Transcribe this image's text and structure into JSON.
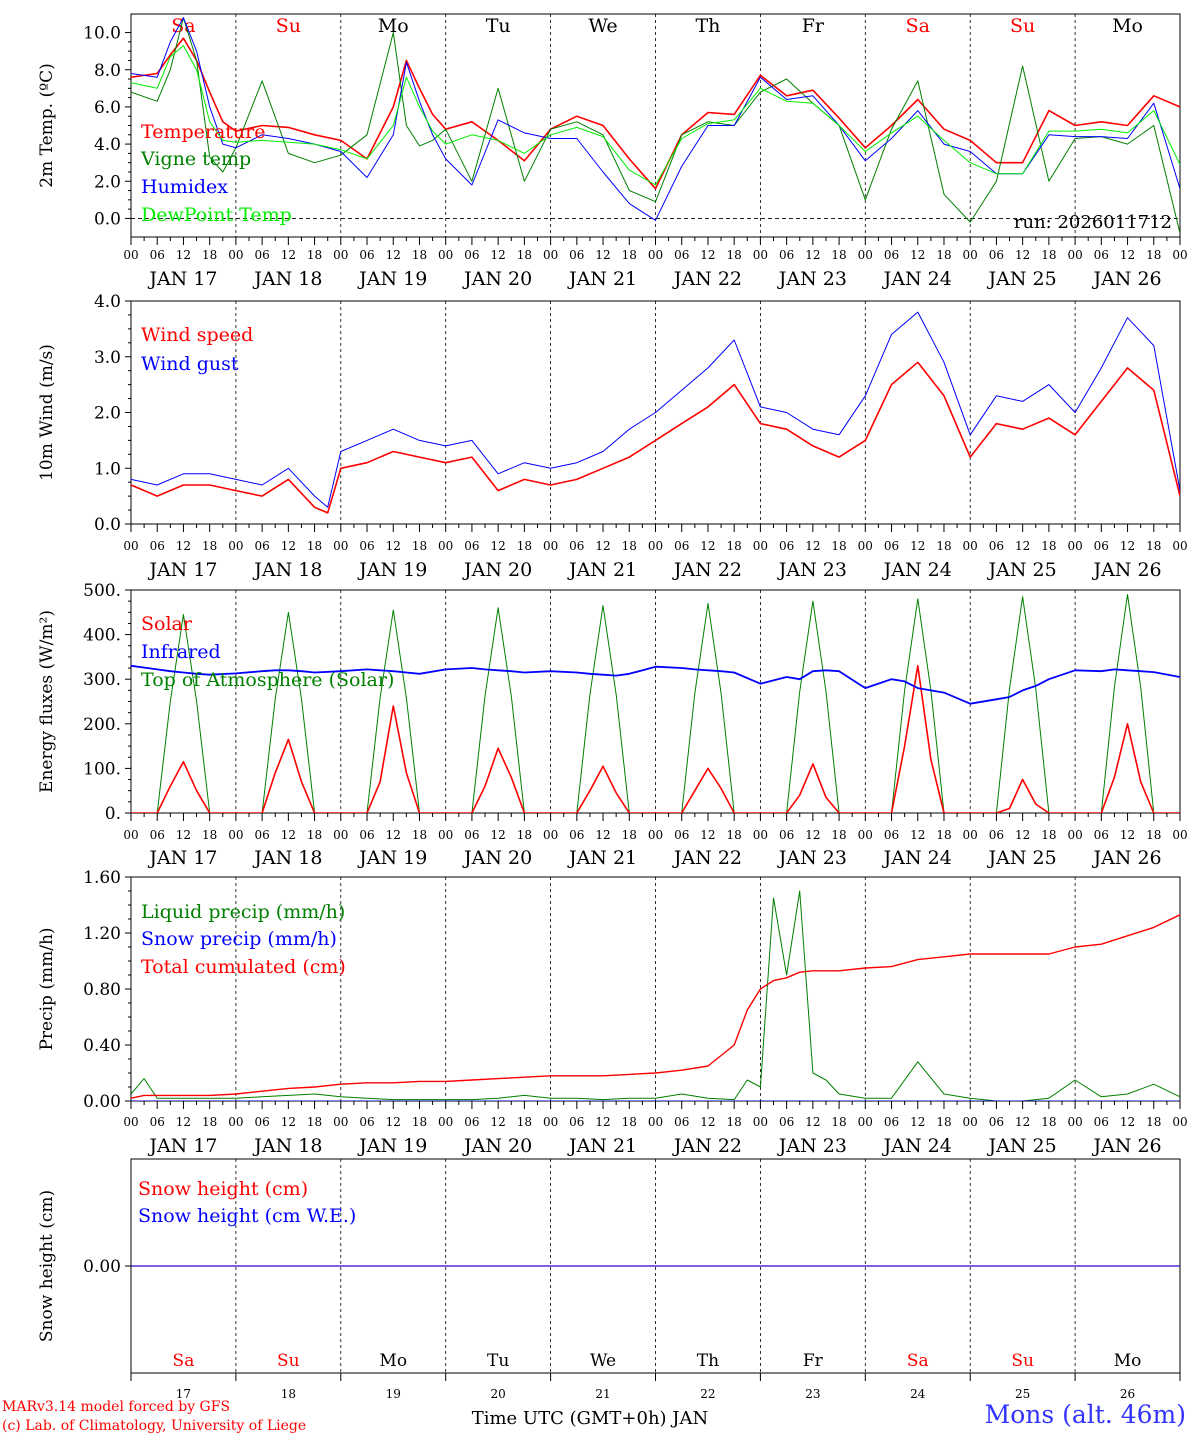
{
  "model_credit": "MARv3.14 model forced by GFS",
  "lab_credit": "(c) Lab. of Climatology, University of Liege",
  "station_label": "Mons (alt. 46m)",
  "x_axis_title": "Time UTC (GMT+0h) JAN",
  "run_label": "run: 2026011712",
  "colors": {
    "red": "#ff0000",
    "green": "#008000",
    "blue": "#0000ff",
    "lime": "#00ee00",
    "grid": "#000000"
  },
  "time_axis": {
    "days": 10,
    "hour_ticks": [
      "00",
      "06",
      "12",
      "18"
    ],
    "final_tick": "00",
    "date_labels": [
      "JAN 17",
      "JAN 18",
      "JAN 19",
      "JAN 20",
      "JAN 21",
      "JAN 22",
      "JAN 23",
      "JAN 24",
      "JAN 25",
      "JAN 26"
    ],
    "weekday_labels": [
      "Sa",
      "Su",
      "Mo",
      "Tu",
      "We",
      "Th",
      "Fr",
      "Sa",
      "Su",
      "Mo"
    ],
    "weekend_flags": [
      true,
      true,
      false,
      false,
      false,
      false,
      false,
      true,
      true,
      false
    ],
    "day_numbers": [
      "17",
      "18",
      "19",
      "20",
      "21",
      "22",
      "23",
      "24",
      "25",
      "26"
    ]
  },
  "chart_data": [
    {
      "id": "temperature",
      "type": "line",
      "ylabel": "2m Temp. (ºC)",
      "ylim": [
        -1.0,
        11.0
      ],
      "yticks": [
        0.0,
        2.0,
        4.0,
        6.0,
        8.0,
        10.0
      ],
      "ytick_labels": [
        "0.0",
        "2.0",
        "4.0",
        "6.0",
        "8.0",
        "10.0"
      ],
      "zero_line": true,
      "x_hours": [
        0,
        6,
        9,
        12,
        15,
        18,
        21,
        24,
        30,
        36,
        42,
        48,
        54,
        60,
        63,
        66,
        69,
        72,
        78,
        84,
        90,
        96,
        102,
        108,
        114,
        120,
        126,
        132,
        138,
        144,
        150,
        156,
        162,
        168,
        174,
        180,
        186,
        192,
        198,
        204,
        210,
        216,
        222,
        228,
        234,
        240
      ],
      "series": [
        {
          "name": "Temperature",
          "color": "#ff0000",
          "width": 1.6,
          "values": [
            7.6,
            7.8,
            8.8,
            9.7,
            8.5,
            6.8,
            5.2,
            4.7,
            5.0,
            4.9,
            4.5,
            4.2,
            3.2,
            6.0,
            8.5,
            7.0,
            5.6,
            4.8,
            5.2,
            4.2,
            3.1,
            4.8,
            5.5,
            5.0,
            3.2,
            1.6,
            4.5,
            5.7,
            5.6,
            7.7,
            6.6,
            6.9,
            5.4,
            3.8,
            5.0,
            6.4,
            4.8,
            4.2,
            3.0,
            3.0,
            5.8,
            5.0,
            5.2,
            5.0,
            6.6,
            6.0
          ]
        },
        {
          "name": "Vigne temp",
          "color": "#008000",
          "width": 1.0,
          "values": [
            6.8,
            6.3,
            8.0,
            10.8,
            8.5,
            3.3,
            2.5,
            3.8,
            7.4,
            3.5,
            3.0,
            3.4,
            4.5,
            10.0,
            5.0,
            3.9,
            4.2,
            4.8,
            2.0,
            7.0,
            2.0,
            4.8,
            5.2,
            4.5,
            1.5,
            0.9,
            4.5,
            5.2,
            5.0,
            6.8,
            7.5,
            6.2,
            5.0,
            1.0,
            4.8,
            7.4,
            1.3,
            -0.2,
            2.0,
            8.2,
            2.0,
            4.3,
            4.4,
            4.0,
            5.0,
            -0.8
          ]
        },
        {
          "name": "Humidex",
          "color": "#0000ff",
          "width": 1.0,
          "values": [
            7.8,
            7.6,
            9.5,
            10.8,
            9.0,
            6.0,
            4.0,
            3.8,
            4.5,
            4.3,
            4.0,
            3.6,
            2.2,
            4.5,
            8.4,
            6.3,
            4.5,
            3.2,
            1.8,
            5.3,
            4.6,
            4.3,
            4.3,
            2.5,
            0.8,
            -0.1,
            2.8,
            5.0,
            5.0,
            7.6,
            6.4,
            6.6,
            5.0,
            3.1,
            4.3,
            5.8,
            4.0,
            3.6,
            2.4,
            2.4,
            4.5,
            4.4,
            4.4,
            4.3,
            6.2,
            1.6
          ]
        },
        {
          "name": "DewPoint Temp",
          "color": "#00ee00",
          "width": 1.0,
          "values": [
            7.3,
            7.0,
            8.7,
            9.3,
            8.0,
            5.2,
            4.2,
            4.1,
            4.2,
            4.1,
            4.0,
            3.7,
            3.2,
            5.0,
            7.6,
            6.0,
            4.7,
            4.0,
            4.5,
            4.2,
            3.5,
            4.5,
            4.9,
            4.4,
            2.6,
            1.8,
            4.3,
            5.1,
            5.3,
            7.0,
            6.3,
            6.2,
            5.0,
            3.6,
            4.6,
            5.5,
            4.2,
            3.0,
            2.4,
            2.4,
            4.7,
            4.7,
            4.8,
            4.6,
            5.8,
            2.9
          ]
        }
      ]
    },
    {
      "id": "wind",
      "type": "line",
      "ylabel": "10m Wind (m/s)",
      "ylim": [
        0.0,
        4.0
      ],
      "yticks": [
        0.0,
        1.0,
        2.0,
        3.0,
        4.0
      ],
      "ytick_labels": [
        "0.0",
        "1.0",
        "2.0",
        "3.0",
        "4.0"
      ],
      "zero_line": false,
      "x_hours": [
        0,
        6,
        12,
        18,
        24,
        30,
        36,
        42,
        45,
        48,
        54,
        60,
        66,
        72,
        78,
        84,
        90,
        96,
        102,
        108,
        114,
        120,
        126,
        132,
        138,
        144,
        150,
        156,
        162,
        168,
        174,
        180,
        186,
        192,
        198,
        204,
        210,
        216,
        222,
        228,
        234,
        240
      ],
      "series": [
        {
          "name": "Wind speed",
          "color": "#ff0000",
          "width": 1.6,
          "values": [
            0.7,
            0.5,
            0.7,
            0.7,
            0.6,
            0.5,
            0.8,
            0.3,
            0.2,
            1.0,
            1.1,
            1.3,
            1.2,
            1.1,
            1.2,
            0.6,
            0.8,
            0.7,
            0.8,
            1.0,
            1.2,
            1.5,
            1.8,
            2.1,
            2.5,
            1.8,
            1.7,
            1.4,
            1.2,
            1.5,
            2.5,
            2.9,
            2.3,
            1.2,
            1.8,
            1.7,
            1.9,
            1.6,
            2.2,
            2.8,
            2.4,
            0.5
          ]
        },
        {
          "name": "Wind gust",
          "color": "#0000ff",
          "width": 1.0,
          "values": [
            0.8,
            0.7,
            0.9,
            0.9,
            0.8,
            0.7,
            1.0,
            0.5,
            0.3,
            1.3,
            1.5,
            1.7,
            1.5,
            1.4,
            1.5,
            0.9,
            1.1,
            1.0,
            1.1,
            1.3,
            1.7,
            2.0,
            2.4,
            2.8,
            3.3,
            2.1,
            2.0,
            1.7,
            1.6,
            2.3,
            3.4,
            3.8,
            2.9,
            1.6,
            2.3,
            2.2,
            2.5,
            2.0,
            2.8,
            3.7,
            3.2,
            0.6
          ]
        }
      ]
    },
    {
      "id": "energy",
      "type": "line",
      "ylabel": "Energy fluxes (W/m²)",
      "ylim": [
        0.0,
        500.0
      ],
      "yticks": [
        0.0,
        100.0,
        200.0,
        300.0,
        400.0,
        500.0
      ],
      "ytick_labels": [
        "0.",
        "100.",
        "200.",
        "300.",
        "400.",
        "500."
      ],
      "zero_line": false,
      "x_hours": [
        0,
        6,
        9,
        12,
        15,
        18,
        24,
        30,
        33,
        36,
        39,
        42,
        48,
        54,
        57,
        60,
        63,
        66,
        72,
        78,
        81,
        84,
        87,
        90,
        96,
        102,
        105,
        108,
        111,
        114,
        120,
        126,
        129,
        132,
        135,
        138,
        144,
        150,
        153,
        156,
        159,
        162,
        168,
        174,
        177,
        180,
        183,
        186,
        192,
        198,
        201,
        204,
        207,
        210,
        216,
        222,
        225,
        228,
        231,
        234,
        240
      ],
      "series": [
        {
          "name": "Top of Atmosphere (Solar)",
          "color": "#008000",
          "width": 1.0,
          "values": [
            0,
            0,
            250,
            445,
            250,
            0,
            0,
            0,
            255,
            450,
            255,
            0,
            0,
            0,
            258,
            455,
            258,
            0,
            0,
            0,
            262,
            460,
            262,
            0,
            0,
            0,
            265,
            465,
            265,
            0,
            0,
            0,
            268,
            470,
            268,
            0,
            0,
            0,
            272,
            475,
            272,
            0,
            0,
            0,
            275,
            480,
            275,
            0,
            0,
            0,
            278,
            485,
            278,
            0,
            0,
            0,
            282,
            490,
            282,
            0,
            0
          ]
        },
        {
          "name": "Solar",
          "color": "#ff0000",
          "width": 1.6,
          "values": [
            0,
            0,
            60,
            115,
            50,
            0,
            0,
            0,
            90,
            165,
            70,
            0,
            0,
            0,
            70,
            240,
            90,
            0,
            0,
            0,
            60,
            145,
            80,
            0,
            0,
            0,
            50,
            105,
            45,
            0,
            0,
            0,
            50,
            100,
            55,
            0,
            0,
            0,
            40,
            110,
            35,
            0,
            0,
            0,
            150,
            330,
            120,
            0,
            0,
            0,
            10,
            75,
            20,
            0,
            0,
            0,
            80,
            200,
            70,
            0,
            0
          ]
        },
        {
          "name": "Infrared",
          "color": "#0000ff",
          "width": 1.8,
          "values": [
            330,
            322,
            318,
            315,
            312,
            310,
            313,
            318,
            320,
            320,
            318,
            315,
            318,
            322,
            320,
            318,
            315,
            312,
            322,
            325,
            322,
            320,
            318,
            315,
            318,
            315,
            312,
            310,
            308,
            312,
            328,
            325,
            322,
            320,
            318,
            315,
            290,
            305,
            300,
            318,
            320,
            318,
            280,
            300,
            295,
            280,
            275,
            270,
            245,
            255,
            260,
            275,
            285,
            300,
            320,
            318,
            322,
            320,
            318,
            316,
            305
          ]
        }
      ]
    },
    {
      "id": "precip",
      "type": "line",
      "ylabel": "Precip (mm/h)",
      "ylim": [
        0.0,
        1.6
      ],
      "yticks": [
        0.0,
        0.4,
        0.8,
        1.2,
        1.6
      ],
      "ytick_labels": [
        "0.00",
        "0.40",
        "0.80",
        "1.20",
        "1.60"
      ],
      "zero_line": false,
      "x_hours": [
        0,
        3,
        6,
        9,
        12,
        18,
        24,
        30,
        36,
        42,
        48,
        54,
        60,
        66,
        72,
        78,
        84,
        90,
        96,
        102,
        108,
        114,
        120,
        126,
        132,
        138,
        141,
        144,
        147,
        150,
        153,
        156,
        159,
        162,
        168,
        174,
        180,
        186,
        192,
        198,
        204,
        210,
        216,
        222,
        228,
        234,
        240
      ],
      "series": [
        {
          "name": "Liquid precip (mm/h)",
          "color": "#008000",
          "width": 1.0,
          "values": [
            0.05,
            0.16,
            0.02,
            0.02,
            0.02,
            0.02,
            0.02,
            0.03,
            0.04,
            0.05,
            0.03,
            0.02,
            0.01,
            0.01,
            0.01,
            0.01,
            0.02,
            0.04,
            0.02,
            0.02,
            0.01,
            0.02,
            0.02,
            0.05,
            0.02,
            0.01,
            0.15,
            0.1,
            1.45,
            0.9,
            1.5,
            0.2,
            0.15,
            0.05,
            0.02,
            0.02,
            0.28,
            0.05,
            0.02,
            0.0,
            0.0,
            0.02,
            0.15,
            0.03,
            0.05,
            0.12,
            0.03
          ]
        },
        {
          "name": "Snow precip (mm/h)",
          "color": "#0000ff",
          "width": 1.0,
          "values": [
            0.0,
            0.0,
            0.0,
            0.0,
            0.0,
            0.0,
            0.0,
            0.0,
            0.0,
            0.0,
            0.0,
            0.0,
            0.0,
            0.0,
            0.0,
            0.0,
            0.0,
            0.0,
            0.0,
            0.0,
            0.0,
            0.0,
            0.0,
            0.0,
            0.0,
            0.0,
            0.0,
            0.0,
            0.0,
            0.0,
            0.0,
            0.0,
            0.0,
            0.0,
            0.0,
            0.0,
            0.0,
            0.0,
            0.0,
            0.0,
            0.0,
            0.0,
            0.0,
            0.0,
            0.0,
            0.0,
            0.0
          ]
        },
        {
          "name": "Total cumulated (cm)",
          "color": "#ff0000",
          "width": 1.4,
          "values": [
            0.02,
            0.04,
            0.04,
            0.04,
            0.04,
            0.04,
            0.05,
            0.07,
            0.09,
            0.1,
            0.12,
            0.13,
            0.13,
            0.14,
            0.14,
            0.15,
            0.16,
            0.17,
            0.18,
            0.18,
            0.18,
            0.19,
            0.2,
            0.22,
            0.25,
            0.4,
            0.65,
            0.8,
            0.86,
            0.88,
            0.92,
            0.93,
            0.93,
            0.93,
            0.95,
            0.96,
            1.01,
            1.03,
            1.05,
            1.05,
            1.05,
            1.05,
            1.1,
            1.12,
            1.18,
            1.24,
            1.33
          ]
        }
      ]
    },
    {
      "id": "snow",
      "type": "line",
      "ylabel": "Snow height (cm)",
      "ylim": [
        -1.0,
        1.0
      ],
      "yticks": [
        0.0
      ],
      "ytick_labels": [
        "0.00"
      ],
      "zero_line": false,
      "x_hours": [
        0,
        240
      ],
      "series": [
        {
          "name": "Snow height (cm)",
          "color": "#ff0000",
          "width": 1.2,
          "values": [
            0.0,
            0.0
          ]
        },
        {
          "name": "Snow height (cm W.E.)",
          "color": "#0000ff",
          "width": 1.0,
          "values": [
            0.0,
            0.0
          ]
        }
      ]
    }
  ]
}
